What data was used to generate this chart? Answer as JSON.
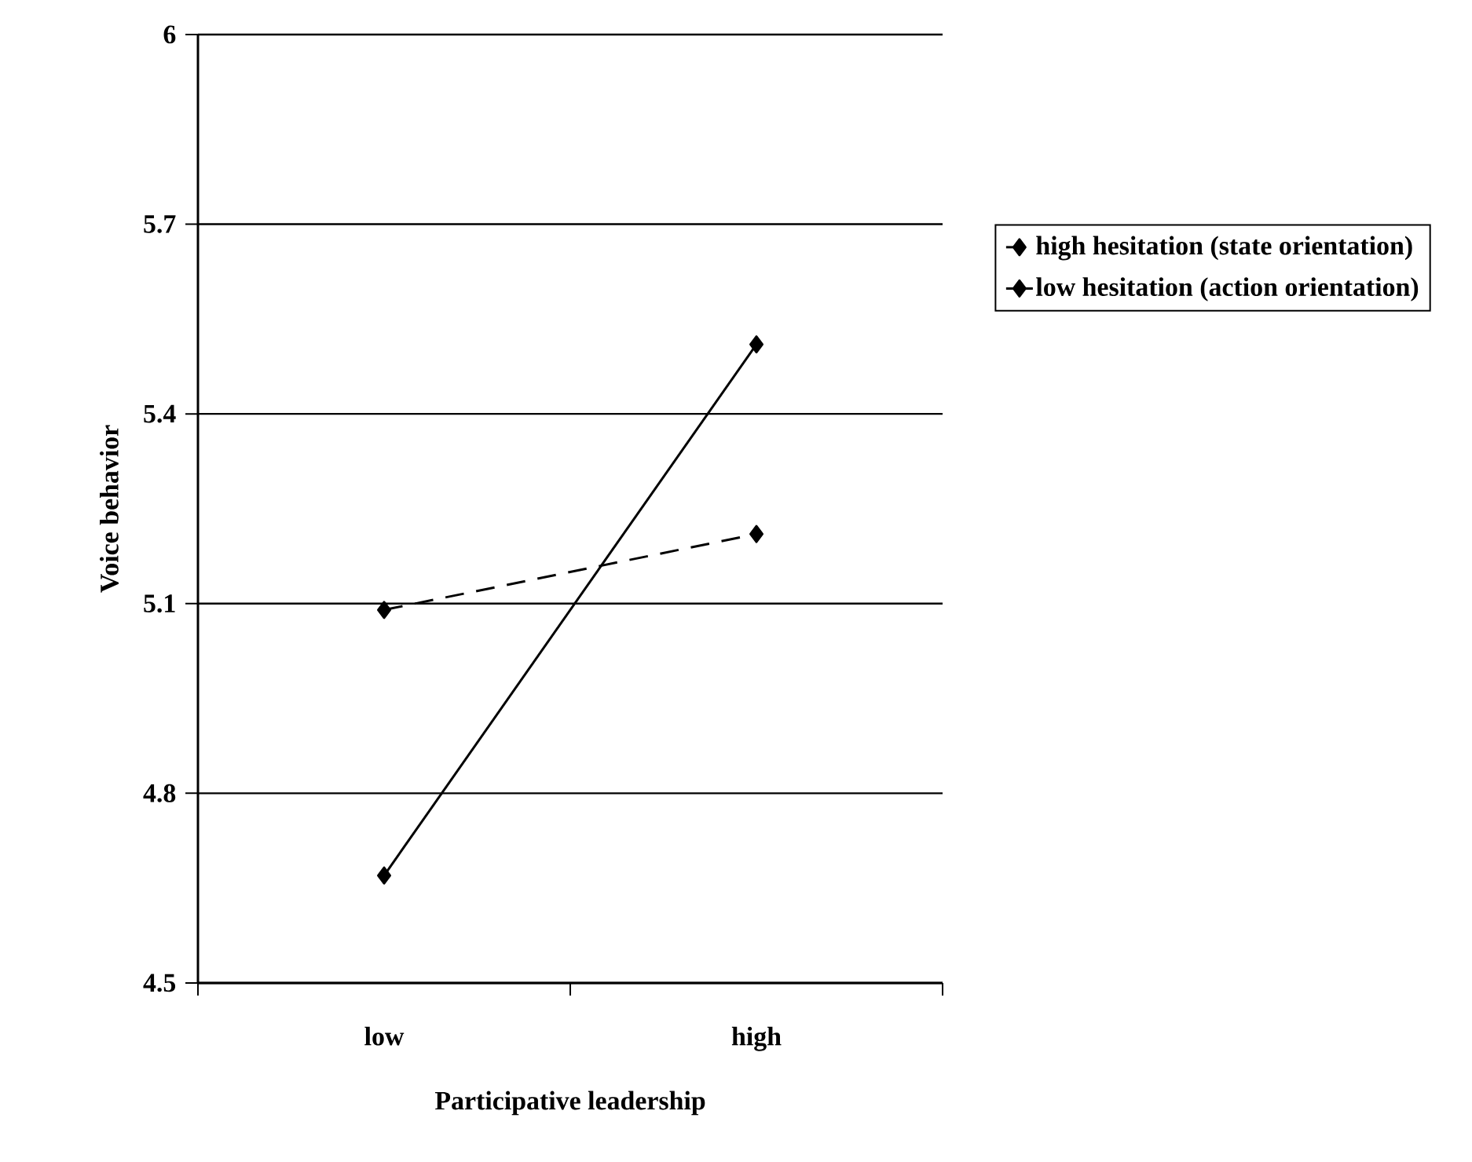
{
  "chart_data": {
    "type": "line",
    "xlabel": "Participative leadership",
    "ylabel": "Voice behavior",
    "categories": [
      "low",
      "high"
    ],
    "series": [
      {
        "name": "high hesitation (state orientation)",
        "color": "#000000",
        "values": [
          5.09,
          5.21
        ],
        "line_style": "dashed"
      },
      {
        "name": "low hesitation (action orientation)",
        "color": "#000000",
        "values": [
          4.67,
          5.51
        ],
        "line_style": "solid"
      }
    ],
    "ylim": [
      4.5,
      6
    ],
    "yticks": [
      4.5,
      4.8,
      5.1,
      5.4,
      5.7,
      6
    ],
    "grid": "y",
    "legend": "right",
    "marker": "diamond"
  }
}
